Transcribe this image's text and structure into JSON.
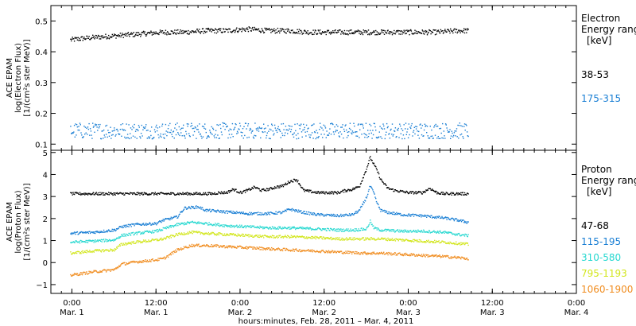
{
  "chart_data": [
    {
      "type": "scatter",
      "panel": "electron",
      "ylabel": [
        "ACE EPAM",
        "log(Electron Flux)",
        "[1/(cm²s ster MeV)]"
      ],
      "ylim": [
        0.08,
        0.55
      ],
      "yticks": [
        0.1,
        0.2,
        0.3,
        0.4,
        0.5
      ],
      "yticklabels": [
        "0.1",
        "0.2",
        "0.3",
        "0.4",
        "0.5"
      ],
      "legend_title": [
        "Electron",
        "Energy ranges",
        "[keV]"
      ],
      "series": [
        {
          "name": "38-53",
          "color": "#000000",
          "x": [
            -0.5,
            3,
            8,
            14,
            20,
            26,
            32,
            38,
            44,
            50,
            56,
            62,
            68,
            74,
            80,
            86,
            92,
            98,
            104,
            110,
            113
          ],
          "y": [
            0.44,
            0.445,
            0.45,
            0.455,
            0.46,
            0.465,
            0.465,
            0.47,
            0.47,
            0.475,
            0.47,
            0.47,
            0.465,
            0.465,
            0.465,
            0.465,
            0.465,
            0.465,
            0.465,
            0.47,
            0.47
          ]
        },
        {
          "name": "175-315",
          "color": "#1a7fd4",
          "x": [
            -0.5,
            10,
            20,
            30,
            40,
            50,
            60,
            70,
            80,
            90,
            100,
            113
          ],
          "y": [
            0.145,
            0.145,
            0.145,
            0.145,
            0.145,
            0.145,
            0.145,
            0.145,
            0.145,
            0.145,
            0.145,
            0.145
          ]
        }
      ]
    },
    {
      "type": "scatter",
      "panel": "proton",
      "ylabel": [
        "ACE EPAM",
        "log(Proton Flux)",
        "[1/(cm²s ster MeV)]"
      ],
      "ylim": [
        -1.4,
        5.1
      ],
      "yticks": [
        -1,
        0,
        1,
        2,
        3,
        4,
        5
      ],
      "yticklabels": [
        "−1",
        "0",
        "1",
        "2",
        "3",
        "4",
        "5"
      ],
      "legend_title": [
        "Proton",
        "Energy ranges",
        "[keV]"
      ],
      "series": [
        {
          "name": "47-68",
          "color": "#000000",
          "x": [
            -0.5,
            10,
            20,
            30,
            34,
            36,
            38,
            40,
            42,
            44,
            46,
            48,
            50,
            52,
            54,
            56,
            58,
            60,
            62,
            64,
            66,
            68,
            70,
            72,
            74,
            76,
            78,
            80,
            82,
            84,
            85,
            86,
            87,
            88,
            89,
            90,
            92,
            94,
            96,
            98,
            100,
            102,
            104,
            106,
            108,
            110,
            113
          ],
          "y": [
            3.15,
            3.15,
            3.15,
            3.15,
            3.15,
            3.15,
            3.15,
            3.15,
            3.2,
            3.2,
            3.35,
            3.2,
            3.3,
            3.45,
            3.3,
            3.35,
            3.45,
            3.5,
            3.7,
            3.8,
            3.3,
            3.25,
            3.2,
            3.2,
            3.2,
            3.2,
            3.3,
            3.35,
            3.5,
            4.3,
            4.8,
            4.5,
            4.2,
            3.8,
            3.6,
            3.4,
            3.3,
            3.25,
            3.2,
            3.2,
            3.2,
            3.4,
            3.2,
            3.15,
            3.15,
            3.15,
            3.15
          ]
        },
        {
          "name": "115-195",
          "color": "#1a7fd4",
          "x": [
            -0.5,
            6,
            12,
            14,
            18,
            24,
            26,
            30,
            32,
            36,
            38,
            42,
            46,
            50,
            56,
            60,
            62,
            66,
            70,
            76,
            80,
            82,
            84,
            85,
            86,
            87,
            88,
            90,
            94,
            100,
            106,
            110,
            113
          ],
          "y": [
            1.35,
            1.4,
            1.5,
            1.65,
            1.75,
            1.8,
            1.95,
            2.1,
            2.5,
            2.55,
            2.4,
            2.35,
            2.3,
            2.25,
            2.25,
            2.3,
            2.45,
            2.3,
            2.2,
            2.15,
            2.2,
            2.4,
            3.0,
            3.5,
            3.2,
            2.7,
            2.4,
            2.3,
            2.2,
            2.15,
            2.05,
            1.95,
            1.85
          ]
        },
        {
          "name": "310-580",
          "color": "#26d8d0",
          "x": [
            -0.5,
            6,
            12,
            14,
            18,
            24,
            26,
            30,
            34,
            38,
            44,
            50,
            56,
            62,
            70,
            76,
            80,
            84,
            85,
            86,
            88,
            94,
            100,
            106,
            110,
            113
          ],
          "y": [
            0.95,
            1.0,
            1.05,
            1.25,
            1.35,
            1.45,
            1.55,
            1.75,
            1.85,
            1.8,
            1.7,
            1.65,
            1.6,
            1.6,
            1.55,
            1.5,
            1.5,
            1.55,
            1.9,
            1.6,
            1.5,
            1.45,
            1.45,
            1.4,
            1.3,
            1.25
          ]
        },
        {
          "name": "795-1193",
          "color": "#d2e61c",
          "x": [
            -0.5,
            6,
            12,
            14,
            18,
            24,
            26,
            30,
            34,
            38,
            44,
            50,
            56,
            62,
            70,
            76,
            84,
            88,
            94,
            100,
            106,
            110,
            113
          ],
          "y": [
            0.45,
            0.55,
            0.6,
            0.85,
            0.95,
            1.05,
            1.1,
            1.3,
            1.4,
            1.35,
            1.3,
            1.25,
            1.2,
            1.2,
            1.15,
            1.1,
            1.1,
            1.1,
            1.05,
            1.0,
            0.95,
            0.9,
            0.85
          ]
        },
        {
          "name": "1060-1900",
          "color": "#f08c1e",
          "x": [
            -0.5,
            6,
            12,
            14,
            18,
            24,
            26,
            30,
            34,
            38,
            44,
            50,
            56,
            62,
            70,
            76,
            84,
            88,
            94,
            100,
            106,
            110,
            113
          ],
          "y": [
            -0.55,
            -0.4,
            -0.3,
            -0.05,
            0.05,
            0.15,
            0.2,
            0.6,
            0.8,
            0.8,
            0.75,
            0.7,
            0.65,
            0.6,
            0.55,
            0.5,
            0.45,
            0.45,
            0.4,
            0.35,
            0.3,
            0.25,
            0.2
          ]
        }
      ]
    }
  ],
  "x_axis": {
    "xlim": [
      -6,
      144
    ],
    "ticks": [
      0,
      24,
      48,
      72,
      96,
      120,
      144
    ],
    "tick_labels": [
      [
        "0:00",
        "Mar. 1"
      ],
      [
        "12:00",
        "Mar. 1"
      ],
      [
        "0:00",
        "Mar. 2"
      ],
      [
        "12:00",
        "Mar. 2"
      ],
      [
        "0:00",
        "Mar. 3"
      ],
      [
        "12:00",
        "Mar. 3"
      ],
      [
        "0:00",
        "Mar. 4"
      ]
    ],
    "xlabel": "hours:minutes, Feb. 28, 2011 – Mar.  4, 2011"
  }
}
